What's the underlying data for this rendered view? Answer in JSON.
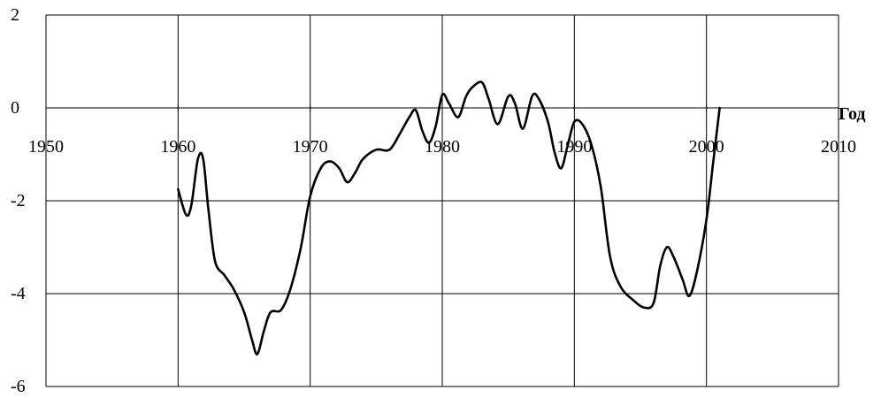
{
  "chart_data": {
    "type": "line",
    "xlabel": "Год",
    "ylabel": "",
    "xlim": [
      1950,
      2010
    ],
    "ylim": [
      -6,
      2
    ],
    "x_ticks": [
      1950,
      1960,
      1970,
      1980,
      1990,
      2000,
      2010
    ],
    "y_ticks": [
      2,
      0,
      -2,
      -4,
      -6
    ],
    "grid": true,
    "series": [
      {
        "color": "#000000",
        "points": [
          [
            1960.0,
            -1.75
          ],
          [
            1960.6,
            -2.3
          ],
          [
            1961.0,
            -2.1
          ],
          [
            1961.5,
            -1.1
          ],
          [
            1961.9,
            -1.1
          ],
          [
            1962.3,
            -2.2
          ],
          [
            1962.8,
            -3.3
          ],
          [
            1963.5,
            -3.6
          ],
          [
            1964.2,
            -3.9
          ],
          [
            1965.0,
            -4.4
          ],
          [
            1965.6,
            -5.0
          ],
          [
            1966.0,
            -5.3
          ],
          [
            1966.5,
            -4.8
          ],
          [
            1967.0,
            -4.4
          ],
          [
            1967.8,
            -4.35
          ],
          [
            1968.5,
            -3.9
          ],
          [
            1969.3,
            -3.0
          ],
          [
            1970.0,
            -1.9
          ],
          [
            1970.8,
            -1.3
          ],
          [
            1971.5,
            -1.15
          ],
          [
            1972.2,
            -1.3
          ],
          [
            1972.8,
            -1.6
          ],
          [
            1973.4,
            -1.4
          ],
          [
            1974.0,
            -1.1
          ],
          [
            1975.0,
            -0.9
          ],
          [
            1976.0,
            -0.9
          ],
          [
            1976.8,
            -0.55
          ],
          [
            1977.5,
            -0.2
          ],
          [
            1978.0,
            -0.05
          ],
          [
            1978.5,
            -0.5
          ],
          [
            1979.0,
            -0.75
          ],
          [
            1979.5,
            -0.4
          ],
          [
            1980.0,
            0.28
          ],
          [
            1980.5,
            0.1
          ],
          [
            1981.2,
            -0.2
          ],
          [
            1981.8,
            0.25
          ],
          [
            1982.3,
            0.45
          ],
          [
            1983.0,
            0.55
          ],
          [
            1983.5,
            0.2
          ],
          [
            1984.2,
            -0.35
          ],
          [
            1985.0,
            0.25
          ],
          [
            1985.5,
            0.1
          ],
          [
            1986.1,
            -0.45
          ],
          [
            1986.8,
            0.25
          ],
          [
            1987.3,
            0.2
          ],
          [
            1988.0,
            -0.3
          ],
          [
            1988.5,
            -0.95
          ],
          [
            1989.0,
            -1.3
          ],
          [
            1989.5,
            -0.8
          ],
          [
            1990.0,
            -0.3
          ],
          [
            1990.6,
            -0.35
          ],
          [
            1991.3,
            -0.8
          ],
          [
            1992.0,
            -1.7
          ],
          [
            1992.7,
            -3.2
          ],
          [
            1993.5,
            -3.85
          ],
          [
            1994.5,
            -4.15
          ],
          [
            1995.3,
            -4.3
          ],
          [
            1996.0,
            -4.2
          ],
          [
            1996.5,
            -3.4
          ],
          [
            1997.0,
            -3.0
          ],
          [
            1997.5,
            -3.2
          ],
          [
            1998.2,
            -3.7
          ],
          [
            1998.7,
            -4.05
          ],
          [
            1999.3,
            -3.5
          ],
          [
            2000.0,
            -2.4
          ],
          [
            2000.5,
            -1.2
          ],
          [
            2001.0,
            0.0
          ]
        ]
      }
    ]
  }
}
